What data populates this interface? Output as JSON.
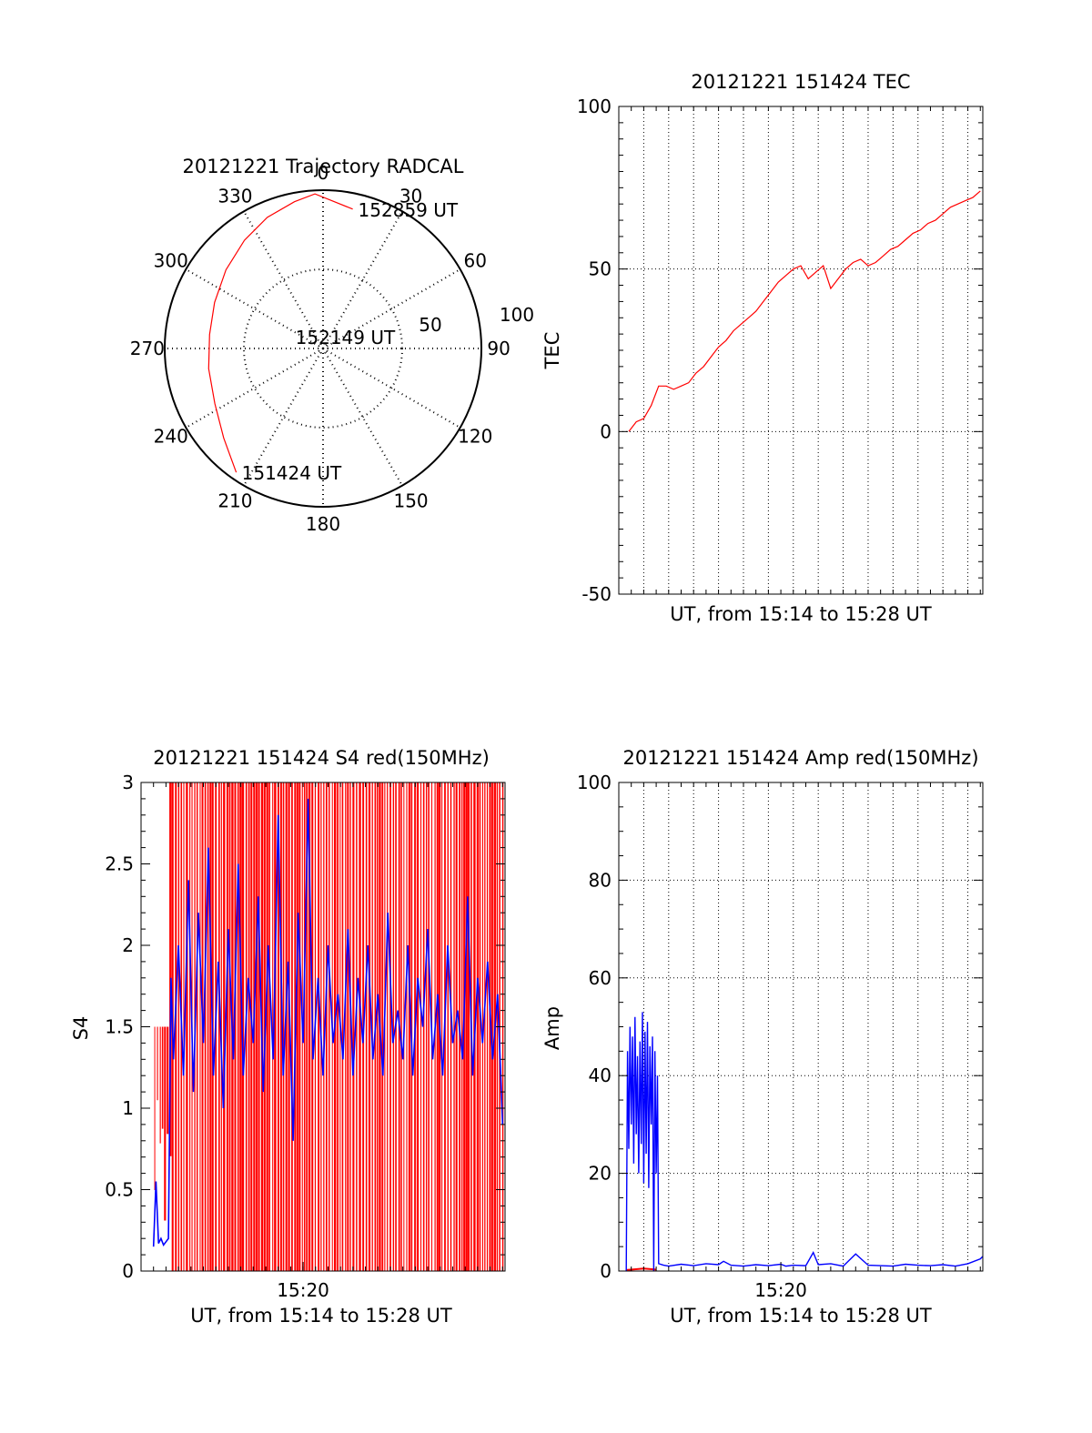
{
  "chart_data": [
    {
      "type": "polar",
      "title": "20121221 Trajectory RADCAL",
      "angle_labels": [
        "0",
        "30",
        "60",
        "90",
        "120",
        "150",
        "180",
        "210",
        "240",
        "270",
        "300",
        "330"
      ],
      "radial_labels": [
        "50",
        "100"
      ],
      "rmax": 90,
      "grid": true,
      "series": [
        {
          "color": "#ff0000",
          "points": [
            {
              "az": 215,
              "r": 86
            },
            {
              "az": 228,
              "r": 76
            },
            {
              "az": 243,
              "r": 69
            },
            {
              "az": 260,
              "r": 66
            },
            {
              "az": 277,
              "r": 65
            },
            {
              "az": 293,
              "r": 67
            },
            {
              "az": 309,
              "r": 71
            },
            {
              "az": 324,
              "r": 76
            },
            {
              "az": 337,
              "r": 81
            },
            {
              "az": 349,
              "r": 85
            },
            {
              "az": 357,
              "r": 88
            },
            {
              "az": 12,
              "r": 81
            }
          ]
        }
      ],
      "annotations": [
        {
          "text": "152859 UT",
          "az": 12,
          "r": 81
        },
        {
          "text": "152149 UT",
          "az": 290,
          "r": 20
        },
        {
          "text": "151424 UT",
          "az": 215,
          "r": 86
        }
      ]
    },
    {
      "type": "line",
      "title": "20121221 151424 TEC",
      "xlabel": "UT, from 15:14 to 15:28 UT",
      "ylabel": "TEC",
      "xlim": [
        0,
        14.6
      ],
      "ylim": [
        -50,
        100
      ],
      "yticks": [
        -50,
        0,
        50,
        100
      ],
      "vgrid_minutes": [
        1,
        2,
        3,
        4,
        5,
        6,
        7,
        8,
        9,
        10,
        11,
        12,
        13,
        14
      ],
      "grid": true,
      "series": [
        {
          "color": "#ff0000",
          "x": [
            0.4,
            0.7,
            1.0,
            1.3,
            1.6,
            1.9,
            2.2,
            2.5,
            2.8,
            3.1,
            3.4,
            3.7,
            4.0,
            4.3,
            4.6,
            4.9,
            5.2,
            5.5,
            5.8,
            6.1,
            6.4,
            6.7,
            7.0,
            7.3,
            7.6,
            7.9,
            8.2,
            8.5,
            8.8,
            9.1,
            9.4,
            9.7,
            10.0,
            10.3,
            10.6,
            10.9,
            11.2,
            11.5,
            11.8,
            12.1,
            12.4,
            12.7,
            13.0,
            13.3,
            13.6,
            13.9,
            14.2,
            14.5
          ],
          "y": [
            0,
            3,
            4,
            8,
            14,
            14,
            13,
            14,
            15,
            18,
            20,
            23,
            26,
            28,
            31,
            33,
            35,
            37,
            40,
            43,
            46,
            48,
            50,
            51,
            47,
            49,
            51,
            44,
            47,
            50,
            52,
            53,
            51,
            52,
            54,
            56,
            57,
            59,
            61,
            62,
            64,
            65,
            67,
            69,
            70,
            71,
            72,
            74
          ]
        }
      ]
    },
    {
      "type": "line",
      "title": "20121221 151424 S4 red(150MHz)",
      "xlabel": "UT, from 15:14 to 15:28 UT",
      "ylabel": "S4",
      "xlim": [
        0,
        14.6
      ],
      "ylim": [
        0,
        3
      ],
      "yticks": [
        0,
        0.5,
        1,
        1.5,
        2,
        2.5,
        3
      ],
      "xtick_labels": [
        {
          "minute": 6.5,
          "label": "15:20"
        }
      ],
      "series": [
        {
          "name": "",
          "color": "#ff0000",
          "values": [
            [
              0,
              0.3
            ],
            [
              0.6,
              1.5
            ],
            [
              1.1,
              3.0
            ],
            [
              14.6,
              3.0
            ]
          ],
          "style": "dense oscillation between 0 and 3 from 15:15 to 15:28"
        },
        {
          "name": "",
          "color": "#0000ff",
          "x": [
            0.5,
            0.6,
            0.7,
            0.8,
            0.9,
            1.0,
            1.1,
            1.2,
            1.3,
            1.5,
            1.7,
            1.9,
            2.1,
            2.3,
            2.5,
            2.7,
            2.9,
            3.1,
            3.3,
            3.5,
            3.7,
            3.9,
            4.1,
            4.3,
            4.5,
            4.7,
            4.9,
            5.1,
            5.3,
            5.5,
            5.7,
            5.9,
            6.1,
            6.3,
            6.5,
            6.7,
            6.9,
            7.1,
            7.3,
            7.5,
            7.7,
            7.9,
            8.1,
            8.3,
            8.5,
            8.7,
            8.9,
            9.1,
            9.3,
            9.5,
            9.7,
            9.9,
            10.1,
            10.3,
            10.5,
            10.7,
            10.9,
            11.1,
            11.3,
            11.5,
            11.7,
            11.9,
            12.1,
            12.3,
            12.5,
            12.7,
            12.9,
            13.1,
            13.3,
            13.5,
            13.7,
            13.9,
            14.1,
            14.3,
            14.5
          ],
          "y": [
            0.15,
            0.55,
            0.17,
            0.2,
            0.16,
            0.18,
            0.2,
            1.8,
            1.3,
            2.0,
            1.2,
            2.4,
            1.1,
            2.2,
            1.4,
            2.6,
            1.2,
            1.9,
            1.0,
            2.1,
            1.3,
            2.5,
            1.2,
            1.8,
            1.4,
            2.3,
            1.1,
            2.0,
            1.3,
            2.8,
            1.2,
            1.9,
            0.8,
            2.2,
            1.4,
            2.9,
            1.3,
            1.8,
            1.2,
            2.0,
            1.4,
            1.7,
            1.3,
            2.1,
            1.2,
            1.8,
            1.4,
            2.0,
            1.3,
            1.7,
            1.2,
            2.2,
            1.4,
            1.6,
            1.3,
            2.0,
            1.2,
            1.8,
            1.5,
            2.1,
            1.3,
            1.7,
            1.2,
            2.0,
            1.4,
            1.6,
            1.3,
            2.3,
            1.2,
            1.8,
            1.4,
            1.9,
            1.3,
            1.7,
            0.9
          ]
        }
      ]
    },
    {
      "type": "line",
      "title": "20121221 151424 Amp red(150MHz)",
      "xlabel": "UT, from 15:14 to 15:28 UT",
      "ylabel": "Amp",
      "xlim": [
        0,
        14.6
      ],
      "ylim": [
        0,
        100
      ],
      "yticks": [
        0,
        20,
        40,
        60,
        80,
        100
      ],
      "xtick_labels": [
        {
          "minute": 6.5,
          "label": "15:20"
        }
      ],
      "vgrid_minutes": [
        1,
        2,
        3,
        4,
        5,
        6,
        7,
        8,
        9,
        10,
        11,
        12,
        13,
        14
      ],
      "grid": true,
      "series": [
        {
          "name": "",
          "color": "#0000ff",
          "x": [
            0.3,
            0.35,
            0.4,
            0.45,
            0.5,
            0.55,
            0.6,
            0.65,
            0.7,
            0.75,
            0.8,
            0.85,
            0.9,
            0.95,
            1.0,
            1.05,
            1.1,
            1.15,
            1.2,
            1.25,
            1.3,
            1.35,
            1.4,
            1.45,
            1.5,
            1.55,
            1.6,
            1.8,
            2.0,
            2.5,
            3.0,
            3.5,
            4.0,
            4.2,
            4.5,
            5.0,
            5.5,
            6.0,
            6.5,
            6.7,
            7.0,
            7.5,
            7.8,
            8.0,
            8.5,
            9.0,
            9.5,
            10.0,
            10.5,
            11.0,
            11.5,
            12.0,
            12.5,
            13.0,
            13.5,
            14.0,
            14.5,
            14.6
          ],
          "y": [
            0,
            45,
            25,
            50,
            30,
            48,
            22,
            52,
            28,
            44,
            20,
            47,
            26,
            53,
            18,
            49,
            24,
            51,
            17,
            46,
            30,
            48,
            0,
            45,
            20,
            40,
            1.5,
            1.2,
            1.0,
            1.4,
            1.1,
            1.5,
            1.3,
            2.0,
            1.2,
            1.0,
            1.3,
            1.1,
            1.4,
            1.0,
            1.2,
            1.1,
            3.8,
            1.3,
            1.5,
            1.0,
            3.5,
            1.2,
            1.1,
            1.0,
            1.4,
            1.2,
            1.1,
            1.3,
            1.0,
            1.5,
            2.5,
            3.0
          ]
        },
        {
          "name": "",
          "color": "#ff0000",
          "x": [
            0.3,
            1.0,
            1.5
          ],
          "y": [
            0.2,
            0.5,
            0.3
          ]
        }
      ]
    }
  ]
}
